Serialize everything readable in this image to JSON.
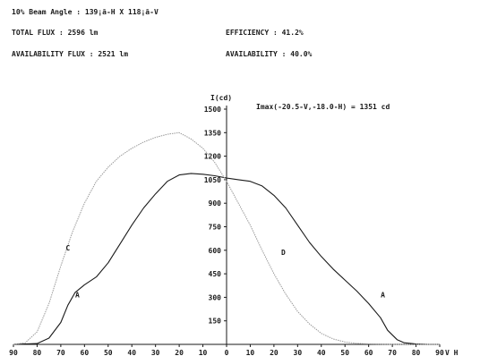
{
  "header": {
    "beam_angle": "10% Beam Angle : 139¡ã-H X 118¡ã-V",
    "total_flux": "TOTAL FLUX : 2596 lm",
    "efficiency": "EFFICIENCY : 41.2%",
    "availability_flux": "AVAILABILITY FLUX : 2521 lm",
    "availability": "AVAILABILITY : 40.0%"
  },
  "chart_data": {
    "type": "line",
    "ylabel": "I(cd)",
    "xlabel": "V H",
    "annotation": "Imax(-20.5-V,-18.0-H) = 1351 cd",
    "xlim": [
      -90,
      90
    ],
    "ylim": [
      0,
      1500
    ],
    "x_tick_labels": [
      "90",
      "80",
      "70",
      "60",
      "50",
      "40",
      "30",
      "20",
      "10",
      "0",
      "10",
      "20",
      "30",
      "40",
      "50",
      "60",
      "70",
      "80",
      "90"
    ],
    "y_tick_labels": [
      "150",
      "300",
      "450",
      "600",
      "750",
      "900",
      "1050",
      "1200",
      "1350",
      "1500"
    ],
    "grid": false,
    "series": [
      {
        "name": "A",
        "label_at": [
          [
            -63,
            300
          ],
          [
            66,
            300
          ]
        ],
        "x": [
          -90,
          -80,
          -75,
          -70,
          -67,
          -64,
          -60,
          -55,
          -50,
          -45,
          -40,
          -35,
          -30,
          -25,
          -20,
          -15,
          -10,
          -5,
          0,
          5,
          10,
          15,
          20,
          25,
          30,
          35,
          40,
          45,
          50,
          55,
          60,
          65,
          68,
          72,
          75,
          80,
          85,
          90
        ],
        "y": [
          0,
          5,
          40,
          140,
          250,
          330,
          380,
          430,
          520,
          640,
          760,
          870,
          960,
          1040,
          1080,
          1090,
          1085,
          1075,
          1060,
          1050,
          1040,
          1010,
          950,
          870,
          760,
          650,
          560,
          480,
          410,
          340,
          260,
          170,
          90,
          30,
          10,
          3,
          0,
          0
        ]
      },
      {
        "name": "C",
        "label_at": [
          [
            -67,
            600
          ]
        ],
        "x": [
          -90,
          -85,
          -80,
          -75,
          -70,
          -65,
          -60,
          -55,
          -50,
          -45,
          -40,
          -35,
          -30,
          -25,
          -20,
          -15,
          -10,
          -5,
          0,
          5,
          10,
          15,
          20,
          25,
          30,
          35,
          40,
          45,
          50,
          55,
          60,
          65,
          70,
          75,
          80,
          85,
          90
        ],
        "y": [
          0,
          10,
          80,
          260,
          500,
          720,
          900,
          1040,
          1130,
          1200,
          1250,
          1290,
          1320,
          1340,
          1350,
          1310,
          1250,
          1160,
          1040,
          900,
          760,
          600,
          450,
          320,
          210,
          130,
          70,
          35,
          15,
          6,
          3,
          1,
          0,
          0,
          0,
          0,
          0
        ]
      },
      {
        "name": "D",
        "label_at": [
          [
            24,
            570
          ]
        ],
        "x": [],
        "y": []
      }
    ]
  }
}
